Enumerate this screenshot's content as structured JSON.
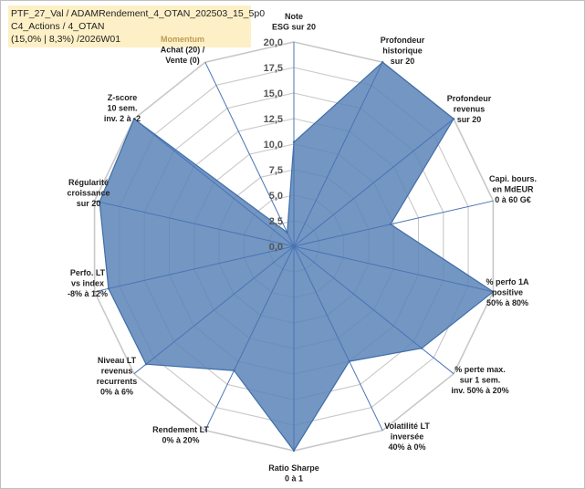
{
  "title_lines": [
    "PTF_27_Val / ADAMRendement_4_OTAN_202503_15_5p0",
    "C4_Actions / 4_OTAN",
    "(15,0% | 8,3%) /2026W01"
  ],
  "colors": {
    "fill": "#5b84b8",
    "stroke": "#3f6ea8",
    "grid": "#c8c8c8",
    "spoke": "#4a74b4",
    "title_bg": "#fdf0c6"
  },
  "chart_data": {
    "type": "radar",
    "r_max": 20,
    "ticks": [
      "0,0",
      "2,5",
      "5,0",
      "7,5",
      "10,0",
      "12,5",
      "15,0",
      "17,5",
      "20,0"
    ],
    "axes": [
      {
        "label": [
          "Note",
          "ESG sur 20"
        ],
        "value": 10.2
      },
      {
        "label": [
          "Profondeur",
          "historique",
          "sur 20"
        ],
        "value": 20
      },
      {
        "label": [
          "Profondeur",
          "revenus",
          "sur 20"
        ],
        "value": 20
      },
      {
        "label": [
          "Capi. bours.",
          "en MdEUR",
          "0 à 60 G€"
        ],
        "value": 9.7
      },
      {
        "label": [
          "% perfo 1A",
          "positive",
          "50% à 80%"
        ],
        "value": 20
      },
      {
        "label": [
          "% perte max.",
          "sur 1 sem.",
          "inv. 50% à 20%"
        ],
        "value": 16
      },
      {
        "label": [
          "Volatilité LT",
          "inversée",
          "40% à 0%"
        ],
        "value": 12.5
      },
      {
        "label": [
          "Ratio Sharpe",
          "0 à 1"
        ],
        "value": 20
      },
      {
        "label": [
          "Rendement LT",
          "0% à 20%"
        ],
        "value": 13.5
      },
      {
        "label": [
          "Niveau LT",
          "revenus",
          "recurrents",
          "0% à 6%"
        ],
        "value": 18.5
      },
      {
        "label": [
          "Perfo. LT",
          "vs index",
          "-8% à 12%"
        ],
        "value": 18.6
      },
      {
        "label": [
          "Régularité",
          "croissance",
          "sur 20"
        ],
        "value": 19.5
      },
      {
        "label": [
          "Z-score",
          "10 sem.",
          "inv. 2 à -2"
        ],
        "value": 20
      },
      {
        "label": [
          "Momentum",
          "Achat (20) /",
          "Vente (0)"
        ],
        "value": 1.5
      }
    ]
  }
}
